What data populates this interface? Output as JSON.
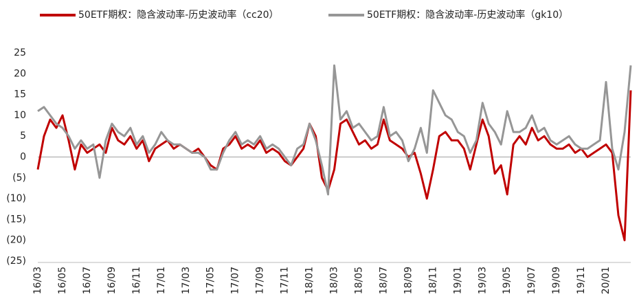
{
  "chart_data": {
    "type": "line",
    "categories": [
      "16/03",
      null,
      null,
      null,
      "16/05",
      null,
      null,
      null,
      "16/07",
      null,
      null,
      null,
      "16/09",
      null,
      null,
      null,
      "16/11",
      null,
      null,
      null,
      "17/01",
      null,
      null,
      null,
      "17/03",
      null,
      null,
      null,
      "17/05",
      null,
      null,
      null,
      "17/07",
      null,
      null,
      null,
      "17/09",
      null,
      null,
      null,
      "17/11",
      null,
      null,
      null,
      "18/01",
      null,
      null,
      null,
      "18/03",
      null,
      null,
      null,
      "18/05",
      null,
      null,
      null,
      "18/07",
      null,
      null,
      null,
      "18/09",
      null,
      null,
      null,
      "18/11",
      null,
      null,
      null,
      "19/01",
      null,
      null,
      null,
      "19/03",
      null,
      null,
      null,
      "19/05",
      null,
      null,
      null,
      "19/07",
      null,
      null,
      null,
      "19/09",
      null,
      null,
      null,
      "19/11",
      null,
      null,
      null,
      "20/01",
      null,
      null,
      null,
      null
    ],
    "series": [
      {
        "name": "50ETF期权：隐含波动率-历史波动率（cc20）",
        "color": "#c00000",
        "values": [
          -3,
          5,
          9,
          7,
          10,
          4,
          -3,
          3,
          1,
          2,
          3,
          1,
          7,
          4,
          3,
          5,
          2,
          4,
          -1,
          2,
          3,
          4,
          2,
          3,
          2,
          1,
          2,
          0,
          -2,
          -3,
          2,
          3,
          5,
          2,
          3,
          2,
          4,
          1,
          2,
          1,
          -1,
          -2,
          0,
          2,
          8,
          5,
          -5,
          -8,
          -3,
          8,
          9,
          6,
          3,
          4,
          2,
          3,
          9,
          4,
          3,
          2,
          0,
          1,
          -4,
          -10,
          -3,
          5,
          6,
          4,
          4,
          2,
          -3,
          3,
          9,
          5,
          -4,
          -2,
          -9,
          3,
          5,
          3,
          7,
          4,
          5,
          3,
          2,
          2,
          3,
          1,
          2,
          0,
          1,
          2,
          3,
          1,
          -14,
          -20,
          16
        ]
      },
      {
        "name": "50ETF期权：隐含波动率-历史波动率（gk10）",
        "color": "#969696",
        "values": [
          11,
          12,
          10,
          8,
          7,
          5,
          2,
          4,
          2,
          3,
          -5,
          4,
          8,
          6,
          5,
          7,
          3,
          5,
          1,
          3,
          6,
          4,
          3,
          3,
          2,
          1,
          1,
          0,
          -3,
          -3,
          1,
          4,
          6,
          3,
          4,
          3,
          5,
          2,
          3,
          2,
          0,
          -2,
          2,
          3,
          8,
          4,
          -2,
          -9,
          22,
          9,
          11,
          7,
          8,
          6,
          4,
          5,
          12,
          5,
          6,
          4,
          -1,
          2,
          7,
          1,
          16,
          13,
          10,
          9,
          6,
          5,
          1,
          4,
          13,
          8,
          6,
          3,
          11,
          6,
          6,
          7,
          10,
          6,
          7,
          4,
          3,
          4,
          5,
          3,
          2,
          2,
          3,
          4,
          18,
          2,
          -3,
          6,
          22
        ]
      }
    ],
    "ylim": [
      -25,
      25
    ],
    "yticks": [
      {
        "value": -25,
        "label": "(25)"
      },
      {
        "value": -20,
        "label": "(20)"
      },
      {
        "value": -15,
        "label": "(15)"
      },
      {
        "value": -10,
        "label": "(10)"
      },
      {
        "value": -5,
        "label": "(5)"
      },
      0,
      5,
      10,
      15,
      20,
      25
    ]
  }
}
